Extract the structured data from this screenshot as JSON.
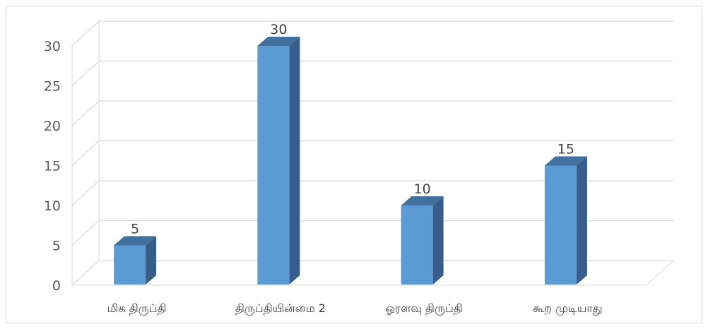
{
  "chart_data": {
    "type": "bar",
    "style": "3d-column",
    "categories": [
      "மிக திருப்தி",
      "திருப்தியின்மை 2",
      "ஓரளவு திருப்தி",
      "கூற முடியாது"
    ],
    "series": [
      {
        "values": [
          5,
          30,
          10,
          15
        ]
      }
    ],
    "data_labels": [
      "5",
      "30",
      "10",
      "15"
    ],
    "ylim": [
      0,
      30
    ],
    "yticks": [
      0,
      5,
      10,
      15,
      20,
      25,
      30
    ],
    "ytick_labels": [
      "0",
      "5",
      "10",
      "15",
      "20",
      "25",
      "30"
    ],
    "title": "",
    "xlabel": "",
    "ylabel": "",
    "grid": true,
    "legend": "none",
    "colors": {
      "bar_front": "#5b9bd5",
      "bar_top": "#41719c",
      "bar_side": "#385d8a",
      "grid": "#d9d9d9",
      "frame": "#d9d9d9"
    }
  }
}
